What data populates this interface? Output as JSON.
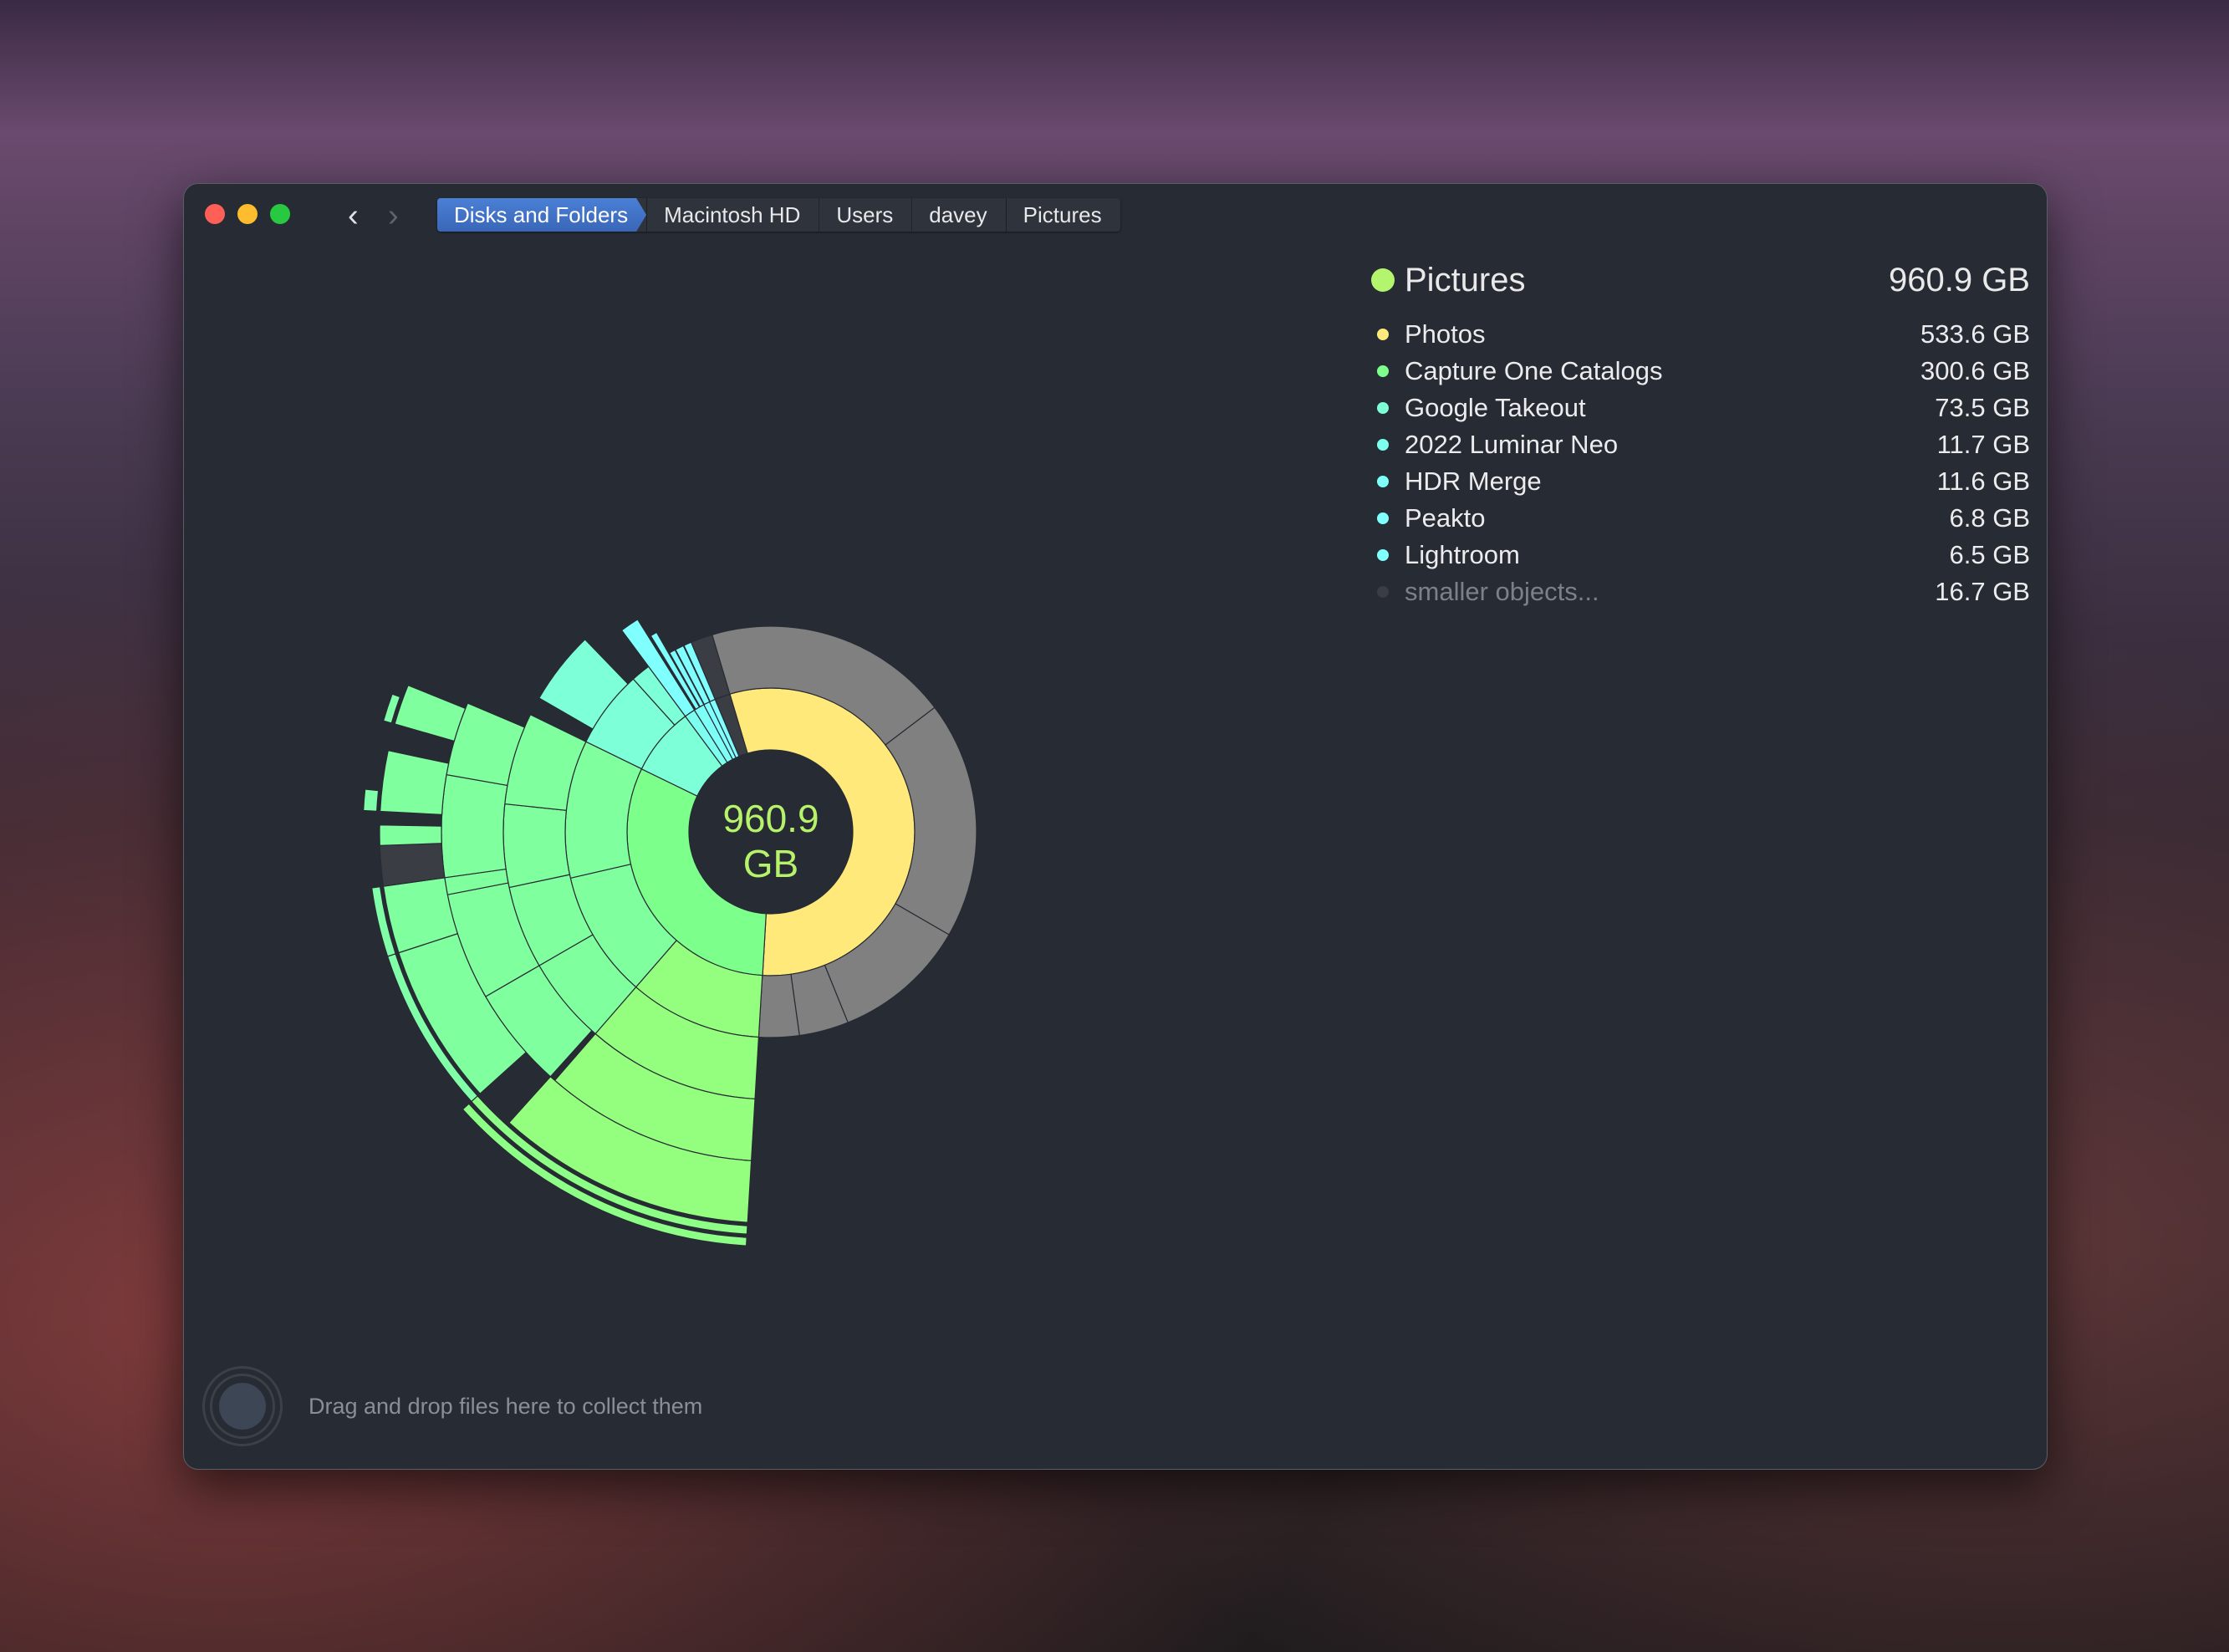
{
  "window": {
    "traffic_lights": {
      "close": "#fe5f57",
      "minimize": "#febc2e",
      "zoom": "#28c840"
    },
    "nav": {
      "back": "‹",
      "forward": "›"
    },
    "breadcrumb": [
      "Disks and Folders",
      "Macintosh HD",
      "Users",
      "davey",
      "Pictures"
    ],
    "footer": {
      "drop_hint": "Drag and drop files here to collect them"
    }
  },
  "legend": {
    "root": {
      "name": "Pictures",
      "size": "960.9 GB",
      "color": "#b4f56e"
    },
    "items": [
      {
        "name": "Photos",
        "size": "533.6 GB",
        "color": "#ffe97a"
      },
      {
        "name": "Capture One Catalogs",
        "size": "300.6 GB",
        "color": "#7dff8c"
      },
      {
        "name": "Google Takeout",
        "size": "73.5 GB",
        "color": "#7dffd8"
      },
      {
        "name": "2022 Luminar Neo",
        "size": "11.7 GB",
        "color": "#7dfff0"
      },
      {
        "name": "HDR Merge",
        "size": "11.6 GB",
        "color": "#7dfff8"
      },
      {
        "name": "Peakto",
        "size": "6.8 GB",
        "color": "#80ffff"
      },
      {
        "name": "Lightroom",
        "size": "6.5 GB",
        "color": "#80ffff"
      },
      {
        "name": "smaller objects...",
        "size": "16.7 GB",
        "color": "#3a3d44"
      }
    ]
  },
  "chart_data": {
    "type": "sunburst",
    "center_label": {
      "value": "960.9",
      "unit": "GB"
    },
    "total_gb": 960.9,
    "slices": [
      {
        "name": "Photos",
        "value": 533.6,
        "color": "#ffe97a"
      },
      {
        "name": "Capture One Catalogs",
        "value": 300.6,
        "color": "#7dff8c"
      },
      {
        "name": "Google Takeout",
        "value": 73.5,
        "color": "#7dffd8"
      },
      {
        "name": "2022 Luminar Neo",
        "value": 11.7,
        "color": "#7dfff0"
      },
      {
        "name": "HDR Merge",
        "value": 11.6,
        "color": "#7dfff8"
      },
      {
        "name": "Peakto",
        "value": 6.8,
        "color": "#80ffff"
      },
      {
        "name": "Lightroom",
        "value": 6.5,
        "color": "#80ffff"
      },
      {
        "name": "smaller objects...",
        "value": 16.7,
        "color": "#3a3d44"
      }
    ]
  }
}
